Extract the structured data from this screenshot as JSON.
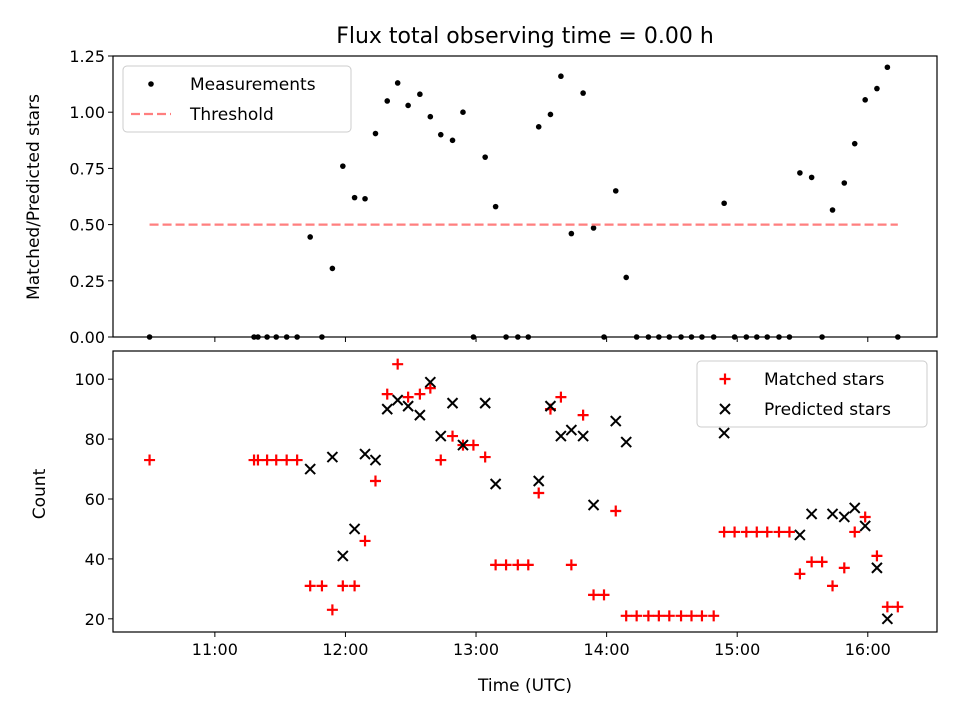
{
  "chart_data": [
    {
      "type": "scatter",
      "title": "Flux total observing time = 0.00 h",
      "xlabel": "",
      "ylabel": "Matched/Predicted stars",
      "ylim": [
        0,
        1.25
      ],
      "xlim": [
        10.22,
        16.53
      ],
      "yticks": [
        0,
        0.25,
        0.5,
        0.75,
        1.0,
        1.25
      ],
      "ytick_labels": [
        "0.00",
        "0.25",
        "0.50",
        "0.75",
        "1.00",
        "1.25"
      ],
      "legend_position": "top-left",
      "series": [
        {
          "name": "Measurements",
          "color": "#000000",
          "marker": "dot",
          "points": [
            [
              10.5,
              0
            ],
            [
              11.3,
              0
            ],
            [
              11.33,
              0
            ],
            [
              11.4,
              0
            ],
            [
              11.47,
              0
            ],
            [
              11.55,
              0
            ],
            [
              11.63,
              0
            ],
            [
              11.73,
              0.445
            ],
            [
              11.82,
              0
            ],
            [
              11.9,
              0.305
            ],
            [
              11.98,
              0.76
            ],
            [
              12.07,
              0.62
            ],
            [
              12.15,
              0.615
            ],
            [
              12.23,
              0.905
            ],
            [
              12.32,
              1.05
            ],
            [
              12.4,
              1.13
            ],
            [
              12.48,
              1.03
            ],
            [
              12.57,
              1.08
            ],
            [
              12.65,
              0.98
            ],
            [
              12.73,
              0.9
            ],
            [
              12.82,
              0.875
            ],
            [
              12.9,
              1.0
            ],
            [
              12.98,
              0
            ],
            [
              13.07,
              0.8
            ],
            [
              13.15,
              0.58
            ],
            [
              13.23,
              0
            ],
            [
              13.32,
              0
            ],
            [
              13.4,
              0
            ],
            [
              13.48,
              0.935
            ],
            [
              13.57,
              0.99
            ],
            [
              13.65,
              1.16
            ],
            [
              13.73,
              0.46
            ],
            [
              13.82,
              1.085
            ],
            [
              13.9,
              0.485
            ],
            [
              13.98,
              0
            ],
            [
              14.07,
              0.65
            ],
            [
              14.15,
              0.265
            ],
            [
              14.23,
              0
            ],
            [
              14.32,
              0
            ],
            [
              14.4,
              0
            ],
            [
              14.48,
              0
            ],
            [
              14.57,
              0
            ],
            [
              14.65,
              0
            ],
            [
              14.73,
              0
            ],
            [
              14.82,
              0
            ],
            [
              14.9,
              0.595
            ],
            [
              14.98,
              0
            ],
            [
              15.07,
              0
            ],
            [
              15.15,
              0
            ],
            [
              15.23,
              0
            ],
            [
              15.32,
              0
            ],
            [
              15.4,
              0
            ],
            [
              15.48,
              0.73
            ],
            [
              15.57,
              0.71
            ],
            [
              15.65,
              0
            ],
            [
              15.73,
              0.565
            ],
            [
              15.82,
              0.685
            ],
            [
              15.9,
              0.86
            ],
            [
              15.98,
              1.055
            ],
            [
              16.07,
              1.105
            ],
            [
              16.15,
              1.2
            ],
            [
              16.23,
              0
            ]
          ]
        },
        {
          "name": "Threshold",
          "color": "#ff7f7f",
          "style": "dashed",
          "points": [
            [
              10.5,
              0.5
            ],
            [
              16.23,
              0.5
            ]
          ]
        }
      ]
    },
    {
      "type": "scatter",
      "title": "",
      "xlabel": "Time (UTC)",
      "ylabel": "Count",
      "ylim": [
        15.6,
        109.4
      ],
      "xlim": [
        10.22,
        16.53
      ],
      "yticks": [
        20,
        40,
        60,
        80,
        100
      ],
      "ytick_labels": [
        "20",
        "40",
        "60",
        "80",
        "100"
      ],
      "xticks": [
        11,
        12,
        13,
        14,
        15,
        16
      ],
      "xtick_labels": [
        "11:00",
        "12:00",
        "13:00",
        "14:00",
        "15:00",
        "16:00"
      ],
      "legend_position": "top-right",
      "series": [
        {
          "name": "Matched stars",
          "color": "#ff0000",
          "marker": "plus",
          "points": [
            [
              10.5,
              73
            ],
            [
              11.3,
              73
            ],
            [
              11.33,
              73
            ],
            [
              11.4,
              73
            ],
            [
              11.47,
              73
            ],
            [
              11.55,
              73
            ],
            [
              11.63,
              73
            ],
            [
              11.73,
              31
            ],
            [
              11.82,
              31
            ],
            [
              11.9,
              23
            ],
            [
              11.98,
              31
            ],
            [
              12.07,
              31
            ],
            [
              12.15,
              46
            ],
            [
              12.23,
              66
            ],
            [
              12.32,
              95
            ],
            [
              12.4,
              105
            ],
            [
              12.48,
              94
            ],
            [
              12.57,
              95
            ],
            [
              12.65,
              97
            ],
            [
              12.73,
              73
            ],
            [
              12.82,
              81
            ],
            [
              12.9,
              78
            ],
            [
              12.98,
              78
            ],
            [
              13.07,
              74
            ],
            [
              13.15,
              38
            ],
            [
              13.23,
              38
            ],
            [
              13.32,
              38
            ],
            [
              13.4,
              38
            ],
            [
              13.48,
              62
            ],
            [
              13.57,
              90
            ],
            [
              13.65,
              94
            ],
            [
              13.73,
              38
            ],
            [
              13.82,
              88
            ],
            [
              13.9,
              28
            ],
            [
              13.98,
              28
            ],
            [
              14.07,
              56
            ],
            [
              14.15,
              21
            ],
            [
              14.23,
              21
            ],
            [
              14.32,
              21
            ],
            [
              14.4,
              21
            ],
            [
              14.48,
              21
            ],
            [
              14.57,
              21
            ],
            [
              14.65,
              21
            ],
            [
              14.73,
              21
            ],
            [
              14.82,
              21
            ],
            [
              14.9,
              49
            ],
            [
              14.98,
              49
            ],
            [
              15.07,
              49
            ],
            [
              15.15,
              49
            ],
            [
              15.23,
              49
            ],
            [
              15.32,
              49
            ],
            [
              15.4,
              49
            ],
            [
              15.48,
              35
            ],
            [
              15.57,
              39
            ],
            [
              15.65,
              39
            ],
            [
              15.73,
              31
            ],
            [
              15.82,
              37
            ],
            [
              15.9,
              49
            ],
            [
              15.98,
              54
            ],
            [
              16.07,
              41
            ],
            [
              16.15,
              24
            ],
            [
              16.23,
              24
            ]
          ]
        },
        {
          "name": "Predicted stars",
          "color": "#000000",
          "marker": "x",
          "points": [
            [
              11.73,
              70
            ],
            [
              11.9,
              74
            ],
            [
              11.98,
              41
            ],
            [
              12.07,
              50
            ],
            [
              12.15,
              75
            ],
            [
              12.23,
              73
            ],
            [
              12.32,
              90
            ],
            [
              12.4,
              93
            ],
            [
              12.48,
              91
            ],
            [
              12.57,
              88
            ],
            [
              12.65,
              99
            ],
            [
              12.73,
              81
            ],
            [
              12.82,
              92
            ],
            [
              12.9,
              78
            ],
            [
              13.07,
              92
            ],
            [
              13.15,
              65
            ],
            [
              13.48,
              66
            ],
            [
              13.57,
              91
            ],
            [
              13.65,
              81
            ],
            [
              13.73,
              83
            ],
            [
              13.82,
              81
            ],
            [
              13.9,
              58
            ],
            [
              14.07,
              86
            ],
            [
              14.15,
              79
            ],
            [
              14.9,
              82
            ],
            [
              15.48,
              48
            ],
            [
              15.57,
              55
            ],
            [
              15.73,
              55
            ],
            [
              15.82,
              54
            ],
            [
              15.9,
              57
            ],
            [
              15.98,
              51
            ],
            [
              16.07,
              37
            ],
            [
              16.15,
              20
            ]
          ]
        }
      ]
    }
  ]
}
